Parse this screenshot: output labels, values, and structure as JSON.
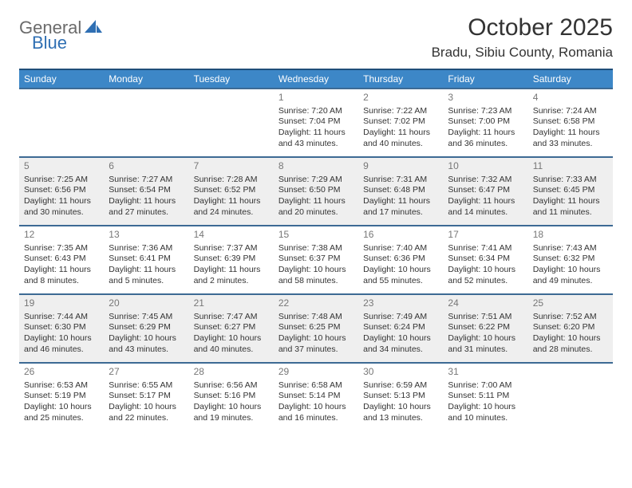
{
  "logo": {
    "general": "General",
    "blue": "Blue"
  },
  "title": "October 2025",
  "location": "Bradu, Sibiu County, Romania",
  "colors": {
    "header_bg": "#3d87c7",
    "header_text": "#ffffff",
    "row_border": "#3d6a94",
    "grey_row": "#efefef",
    "white_row": "#ffffff",
    "daynum": "#777777",
    "body_text": "#333333",
    "logo_grey": "#6b6b6b",
    "logo_blue": "#2f6fb3"
  },
  "day_headers": [
    "Sunday",
    "Monday",
    "Tuesday",
    "Wednesday",
    "Thursday",
    "Friday",
    "Saturday"
  ],
  "weeks": [
    {
      "shade": "white",
      "days": [
        null,
        null,
        null,
        {
          "n": "1",
          "sunrise": "7:20 AM",
          "sunset": "7:04 PM",
          "daylight_h": 11,
          "daylight_m": 43
        },
        {
          "n": "2",
          "sunrise": "7:22 AM",
          "sunset": "7:02 PM",
          "daylight_h": 11,
          "daylight_m": 40
        },
        {
          "n": "3",
          "sunrise": "7:23 AM",
          "sunset": "7:00 PM",
          "daylight_h": 11,
          "daylight_m": 36
        },
        {
          "n": "4",
          "sunrise": "7:24 AM",
          "sunset": "6:58 PM",
          "daylight_h": 11,
          "daylight_m": 33
        }
      ]
    },
    {
      "shade": "grey",
      "days": [
        {
          "n": "5",
          "sunrise": "7:25 AM",
          "sunset": "6:56 PM",
          "daylight_h": 11,
          "daylight_m": 30
        },
        {
          "n": "6",
          "sunrise": "7:27 AM",
          "sunset": "6:54 PM",
          "daylight_h": 11,
          "daylight_m": 27
        },
        {
          "n": "7",
          "sunrise": "7:28 AM",
          "sunset": "6:52 PM",
          "daylight_h": 11,
          "daylight_m": 24
        },
        {
          "n": "8",
          "sunrise": "7:29 AM",
          "sunset": "6:50 PM",
          "daylight_h": 11,
          "daylight_m": 20
        },
        {
          "n": "9",
          "sunrise": "7:31 AM",
          "sunset": "6:48 PM",
          "daylight_h": 11,
          "daylight_m": 17
        },
        {
          "n": "10",
          "sunrise": "7:32 AM",
          "sunset": "6:47 PM",
          "daylight_h": 11,
          "daylight_m": 14
        },
        {
          "n": "11",
          "sunrise": "7:33 AM",
          "sunset": "6:45 PM",
          "daylight_h": 11,
          "daylight_m": 11
        }
      ]
    },
    {
      "shade": "white",
      "days": [
        {
          "n": "12",
          "sunrise": "7:35 AM",
          "sunset": "6:43 PM",
          "daylight_h": 11,
          "daylight_m": 8
        },
        {
          "n": "13",
          "sunrise": "7:36 AM",
          "sunset": "6:41 PM",
          "daylight_h": 11,
          "daylight_m": 5
        },
        {
          "n": "14",
          "sunrise": "7:37 AM",
          "sunset": "6:39 PM",
          "daylight_h": 11,
          "daylight_m": 2
        },
        {
          "n": "15",
          "sunrise": "7:38 AM",
          "sunset": "6:37 PM",
          "daylight_h": 10,
          "daylight_m": 58
        },
        {
          "n": "16",
          "sunrise": "7:40 AM",
          "sunset": "6:36 PM",
          "daylight_h": 10,
          "daylight_m": 55
        },
        {
          "n": "17",
          "sunrise": "7:41 AM",
          "sunset": "6:34 PM",
          "daylight_h": 10,
          "daylight_m": 52
        },
        {
          "n": "18",
          "sunrise": "7:43 AM",
          "sunset": "6:32 PM",
          "daylight_h": 10,
          "daylight_m": 49
        }
      ]
    },
    {
      "shade": "grey",
      "days": [
        {
          "n": "19",
          "sunrise": "7:44 AM",
          "sunset": "6:30 PM",
          "daylight_h": 10,
          "daylight_m": 46
        },
        {
          "n": "20",
          "sunrise": "7:45 AM",
          "sunset": "6:29 PM",
          "daylight_h": 10,
          "daylight_m": 43
        },
        {
          "n": "21",
          "sunrise": "7:47 AM",
          "sunset": "6:27 PM",
          "daylight_h": 10,
          "daylight_m": 40
        },
        {
          "n": "22",
          "sunrise": "7:48 AM",
          "sunset": "6:25 PM",
          "daylight_h": 10,
          "daylight_m": 37
        },
        {
          "n": "23",
          "sunrise": "7:49 AM",
          "sunset": "6:24 PM",
          "daylight_h": 10,
          "daylight_m": 34
        },
        {
          "n": "24",
          "sunrise": "7:51 AM",
          "sunset": "6:22 PM",
          "daylight_h": 10,
          "daylight_m": 31
        },
        {
          "n": "25",
          "sunrise": "7:52 AM",
          "sunset": "6:20 PM",
          "daylight_h": 10,
          "daylight_m": 28
        }
      ]
    },
    {
      "shade": "white",
      "days": [
        {
          "n": "26",
          "sunrise": "6:53 AM",
          "sunset": "5:19 PM",
          "daylight_h": 10,
          "daylight_m": 25
        },
        {
          "n": "27",
          "sunrise": "6:55 AM",
          "sunset": "5:17 PM",
          "daylight_h": 10,
          "daylight_m": 22
        },
        {
          "n": "28",
          "sunrise": "6:56 AM",
          "sunset": "5:16 PM",
          "daylight_h": 10,
          "daylight_m": 19
        },
        {
          "n": "29",
          "sunrise": "6:58 AM",
          "sunset": "5:14 PM",
          "daylight_h": 10,
          "daylight_m": 16
        },
        {
          "n": "30",
          "sunrise": "6:59 AM",
          "sunset": "5:13 PM",
          "daylight_h": 10,
          "daylight_m": 13
        },
        {
          "n": "31",
          "sunrise": "7:00 AM",
          "sunset": "5:11 PM",
          "daylight_h": 10,
          "daylight_m": 10
        },
        null
      ]
    }
  ]
}
